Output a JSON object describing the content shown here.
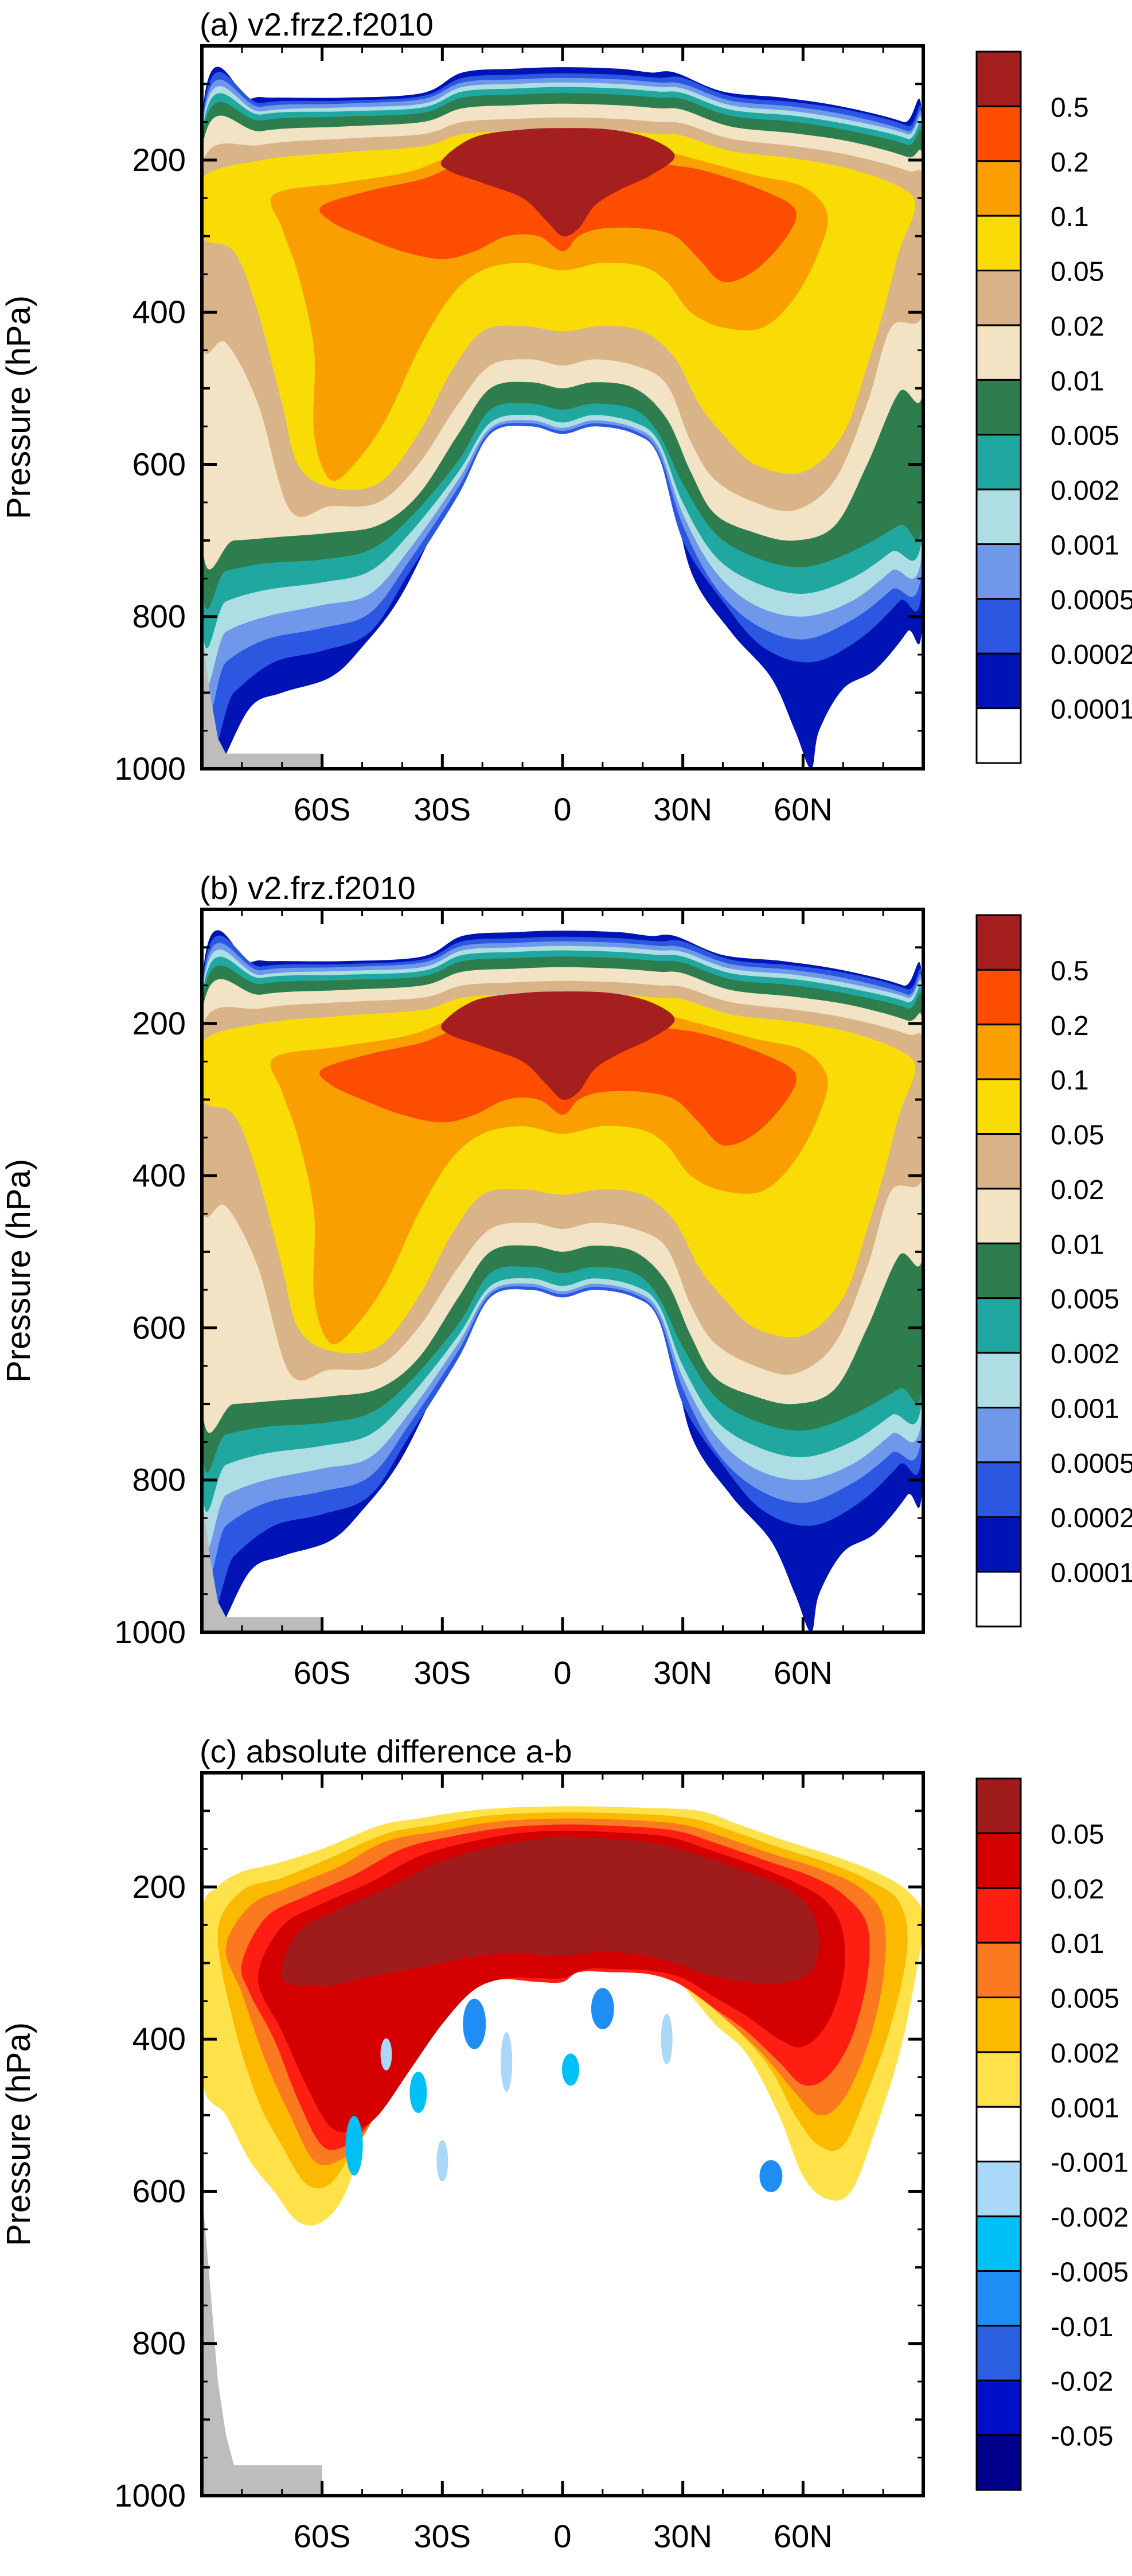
{
  "chart_data": [
    {
      "type": "contour",
      "title": "(a) v2.frz2.f2010",
      "ylabel": "Pressure (hPa)",
      "xlabel": "",
      "ylim": [
        1000,
        50
      ],
      "xlim": [
        -90,
        90
      ],
      "y_ticks": [
        200,
        400,
        600,
        800,
        1000
      ],
      "x_ticks": [
        {
          "value": -60,
          "label": "60S"
        },
        {
          "value": -30,
          "label": "30S"
        },
        {
          "value": 0,
          "label": "0"
        },
        {
          "value": 30,
          "label": "30N"
        },
        {
          "value": 60,
          "label": "60N"
        }
      ],
      "levels": [
        "0.0001",
        "0.0002",
        "0.0005",
        "0.001",
        "0.002",
        "0.005",
        "0.01",
        "0.02",
        "0.05",
        "0.1",
        "0.2",
        "0.5"
      ],
      "colors": [
        "#ffffff",
        "#0013b4",
        "#2c57e0",
        "#6f97ea",
        "#aedee4",
        "#20a8a0",
        "#2e7d4f",
        "#f1e3c3",
        "#d9b489",
        "#f9dc06",
        "#f9a000",
        "#fc4d00",
        "#a61f1f"
      ],
      "variant": "a"
    },
    {
      "type": "contour",
      "title": "(b) v2.frz.f2010",
      "ylabel": "Pressure (hPa)",
      "xlabel": "",
      "ylim": [
        1000,
        50
      ],
      "xlim": [
        -90,
        90
      ],
      "y_ticks": [
        200,
        400,
        600,
        800,
        1000
      ],
      "x_ticks": [
        {
          "value": -60,
          "label": "60S"
        },
        {
          "value": -30,
          "label": "30S"
        },
        {
          "value": 0,
          "label": "0"
        },
        {
          "value": 30,
          "label": "30N"
        },
        {
          "value": 60,
          "label": "60N"
        }
      ],
      "levels": [
        "0.0001",
        "0.0002",
        "0.0005",
        "0.001",
        "0.002",
        "0.005",
        "0.01",
        "0.02",
        "0.05",
        "0.1",
        "0.2",
        "0.5"
      ],
      "colors": [
        "#ffffff",
        "#0013b4",
        "#2c57e0",
        "#6f97ea",
        "#aedee4",
        "#20a8a0",
        "#2e7d4f",
        "#f1e3c3",
        "#d9b489",
        "#f9dc06",
        "#f9a000",
        "#fc4d00",
        "#a61f1f"
      ],
      "variant": "b"
    },
    {
      "type": "contour",
      "title": "(c) absolute difference a-b",
      "ylabel": "Pressure (hPa)",
      "xlabel": "",
      "ylim": [
        1000,
        50
      ],
      "xlim": [
        -90,
        90
      ],
      "y_ticks": [
        200,
        400,
        600,
        800,
        1000
      ],
      "x_ticks": [
        {
          "value": -60,
          "label": "60S"
        },
        {
          "value": -30,
          "label": "30S"
        },
        {
          "value": 0,
          "label": "0"
        },
        {
          "value": 30,
          "label": "30N"
        },
        {
          "value": 60,
          "label": "60N"
        }
      ],
      "levels": [
        "-0.05",
        "-0.02",
        "-0.01",
        "-0.005",
        "-0.002",
        "-0.001",
        "0.001",
        "0.002",
        "0.005",
        "0.01",
        "0.02",
        "0.05"
      ],
      "colors": [
        "#00008a",
        "#0010c8",
        "#2a5fe0",
        "#1e8ef5",
        "#00c0f5",
        "#a9d8f8",
        "#ffffff",
        "#ffe24a",
        "#fbb900",
        "#fb7a1f",
        "#ff1f12",
        "#d40000",
        "#a01c1c"
      ],
      "variant": "c"
    }
  ]
}
